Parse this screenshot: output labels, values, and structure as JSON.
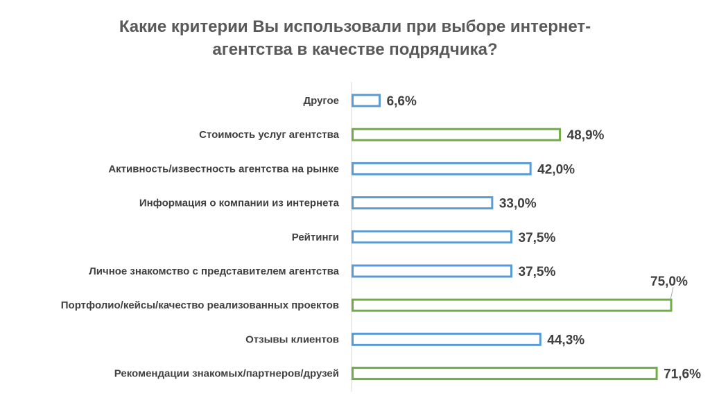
{
  "chart_data": {
    "type": "bar",
    "orientation": "horizontal",
    "title": "Какие критерии Вы использовали при выборе интернет-агентства в качестве подрядчика?",
    "title_lines": [
      "Какие критерии Вы использовали при выборе интернет-",
      "агентства в качестве подрядчика?"
    ],
    "categories": [
      "Другое",
      "Стоимость услуг агентства",
      "Активность/известность агентства на рынке",
      "Информация о компании из интернета",
      "Рейтинги",
      "Личное знакомство с представителем агентства",
      "Портфолио/кейсы/качество реализованных проектов",
      "Отзывы клиентов",
      "Рекомендации знакомых/партнеров/друзей"
    ],
    "values": [
      6.6,
      48.9,
      42.0,
      33.0,
      37.5,
      37.5,
      75.0,
      44.3,
      71.6
    ],
    "value_labels": [
      "6,6%",
      "48,9%",
      "42,0%",
      "33,0%",
      "37,5%",
      "37,5%",
      "75,0%",
      "44,3%",
      "71,6%"
    ],
    "highlighted": [
      false,
      true,
      false,
      false,
      false,
      false,
      true,
      false,
      true
    ],
    "xlim": [
      0,
      75
    ],
    "xlabel": "",
    "ylabel": "",
    "colors": {
      "default": "#5b9bd5",
      "highlight": "#70ad47",
      "text": "#404040",
      "title": "#595959",
      "axis": "#d9d9d9"
    }
  }
}
